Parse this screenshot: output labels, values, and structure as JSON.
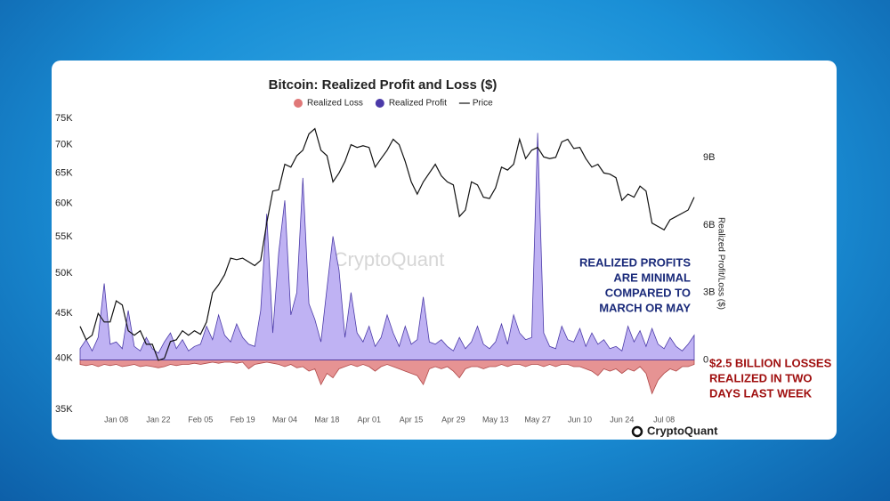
{
  "chart_data": {
    "type": "combo",
    "title": "Bitcoin: Realized Profit and Loss ($)",
    "watermark": "CryptoQuant",
    "logo": "CryptoQuant",
    "y2label": "Realized Profit/Loss ($)",
    "categories": [
      null,
      null,
      null,
      null,
      null,
      null,
      "Jan 08",
      null,
      null,
      null,
      null,
      null,
      null,
      "Jan 22",
      null,
      null,
      null,
      null,
      null,
      null,
      "Feb 05",
      null,
      null,
      null,
      null,
      null,
      null,
      "Feb 19",
      null,
      null,
      null,
      null,
      null,
      null,
      "Mar 04",
      null,
      null,
      null,
      null,
      null,
      null,
      "Mar 18",
      null,
      null,
      null,
      null,
      null,
      null,
      "Apr 01",
      null,
      null,
      null,
      null,
      null,
      null,
      "Apr 15",
      null,
      null,
      null,
      null,
      null,
      null,
      "Apr 29",
      null,
      null,
      null,
      null,
      null,
      null,
      "May 13",
      null,
      null,
      null,
      null,
      null,
      null,
      "May 27",
      null,
      null,
      null,
      null,
      null,
      null,
      "Jun 10",
      null,
      null,
      null,
      null,
      null,
      null,
      "Jun 24",
      null,
      null,
      null,
      null,
      null,
      null,
      "Jul 08",
      null,
      null,
      null,
      null,
      null
    ],
    "ylim": [
      35000,
      75000
    ],
    "log_y": true,
    "yticks": [
      {
        "value": 35000,
        "label": "35K"
      },
      {
        "value": 40000,
        "label": "40K"
      },
      {
        "value": 45000,
        "label": "45K"
      },
      {
        "value": 50000,
        "label": "50K"
      },
      {
        "value": 55000,
        "label": "55K"
      },
      {
        "value": 60000,
        "label": "60K"
      },
      {
        "value": 65000,
        "label": "65K"
      },
      {
        "value": 70000,
        "label": "70K"
      },
      {
        "value": 75000,
        "label": "75K"
      }
    ],
    "y2lim": [
      -2200000000.0,
      10750000000.0
    ],
    "y2ticks": [
      0,
      {
        "value": 3000000000.0,
        "label": "3B"
      },
      {
        "value": 6000000000.0,
        "label": "6B"
      },
      {
        "value": 9000000000.0,
        "label": "9B"
      }
    ],
    "series": [
      {
        "name": "Realized Loss",
        "type": "area",
        "axis": "y2",
        "color": "#e07878",
        "values": [
          -200000000.0,
          -250000000.0,
          -200000000.0,
          -300000000.0,
          -200000000.0,
          -250000000.0,
          -200000000.0,
          -300000000.0,
          -250000000.0,
          -200000000.0,
          -300000000.0,
          -250000000.0,
          -300000000.0,
          -350000000.0,
          -300000000.0,
          -200000000.0,
          -250000000.0,
          -200000000.0,
          -200000000.0,
          -150000000.0,
          -200000000.0,
          -150000000.0,
          -100000000.0,
          -150000000.0,
          -100000000.0,
          -100000000.0,
          -150000000.0,
          -100000000.0,
          -400000000.0,
          -200000000.0,
          -150000000.0,
          -100000000.0,
          -150000000.0,
          -200000000.0,
          -300000000.0,
          -200000000.0,
          -350000000.0,
          -300000000.0,
          -500000000.0,
          -400000000.0,
          -1100000000.0,
          -600000000.0,
          -800000000.0,
          -400000000.0,
          -300000000.0,
          -200000000.0,
          -300000000.0,
          -200000000.0,
          -300000000.0,
          -500000000.0,
          -300000000.0,
          -200000000.0,
          -300000000.0,
          -400000000.0,
          -500000000.0,
          -600000000.0,
          -700000000.0,
          -1100000000.0,
          -400000000.0,
          -300000000.0,
          -400000000.0,
          -300000000.0,
          -500000000.0,
          -800000000.0,
          -400000000.0,
          -300000000.0,
          -300000000.0,
          -400000000.0,
          -300000000.0,
          -300000000.0,
          -200000000.0,
          -300000000.0,
          -200000000.0,
          -200000000.0,
          -300000000.0,
          -200000000.0,
          -200000000.0,
          -300000000.0,
          -200000000.0,
          -300000000.0,
          -200000000.0,
          -200000000.0,
          -300000000.0,
          -300000000.0,
          -400000000.0,
          -500000000.0,
          -700000000.0,
          -400000000.0,
          -500000000.0,
          -400000000.0,
          -600000000.0,
          -400000000.0,
          -500000000.0,
          -300000000.0,
          -600000000.0,
          -1500000000.0,
          -900000000.0,
          -600000000.0,
          -400000000.0,
          -500000000.0,
          -300000000.0,
          -300000000.0,
          -200000000.0
        ]
      },
      {
        "name": "Realized Profit",
        "type": "area",
        "axis": "y2",
        "color": "#4b3aa8",
        "values": [
          500000000.0,
          900000000.0,
          400000000.0,
          1000000000.0,
          3400000000.0,
          700000000.0,
          800000000.0,
          500000000.0,
          2200000000.0,
          600000000.0,
          400000000.0,
          1000000000.0,
          500000000.0,
          300000000.0,
          800000000.0,
          1200000000.0,
          500000000.0,
          900000000.0,
          400000000.0,
          600000000.0,
          700000000.0,
          1500000000.0,
          900000000.0,
          2000000000.0,
          1100000000.0,
          800000000.0,
          1600000000.0,
          1000000000.0,
          700000000.0,
          600000000.0,
          2200000000.0,
          6500000000.0,
          1200000000.0,
          4800000000.0,
          7100000000.0,
          2000000000.0,
          3000000000.0,
          8100000000.0,
          2500000000.0,
          1800000000.0,
          800000000.0,
          3200000000.0,
          5500000000.0,
          4000000000.0,
          1000000000.0,
          3000000000.0,
          1200000000.0,
          800000000.0,
          1500000000.0,
          600000000.0,
          1000000000.0,
          2000000000.0,
          1200000000.0,
          600000000.0,
          1500000000.0,
          700000000.0,
          900000000.0,
          2800000000.0,
          800000000.0,
          700000000.0,
          900000000.0,
          600000000.0,
          400000000.0,
          1000000000.0,
          500000000.0,
          800000000.0,
          1500000000.0,
          700000000.0,
          500000000.0,
          800000000.0,
          1600000000.0,
          700000000.0,
          2000000000.0,
          1200000000.0,
          900000000.0,
          1000000000.0,
          10100000000.0,
          1200000000.0,
          600000000.0,
          500000000.0,
          1500000000.0,
          900000000.0,
          800000000.0,
          1400000000.0,
          600000000.0,
          1200000000.0,
          700000000.0,
          900000000.0,
          500000000.0,
          600000000.0,
          400000000.0,
          1500000000.0,
          800000000.0,
          1300000000.0,
          600000000.0,
          1400000000.0,
          700000000.0,
          500000000.0,
          1000000000.0,
          600000000.0,
          400000000.0,
          700000000.0,
          1100000000.0
        ]
      },
      {
        "name": "Price",
        "type": "line",
        "axis": "y",
        "color": "#111111",
        "values": [
          43500,
          42000,
          42500,
          45000,
          44000,
          44000,
          46500,
          46000,
          43000,
          42500,
          43000,
          41500,
          41500,
          39800,
          40000,
          41800,
          42000,
          43000,
          42500,
          43000,
          42600,
          44000,
          47500,
          48500,
          49800,
          52000,
          51800,
          52000,
          51500,
          51000,
          51700,
          57000,
          62000,
          62200,
          66500,
          66000,
          68000,
          69000,
          72000,
          73000,
          69000,
          68000,
          63500,
          65000,
          67000,
          70000,
          69500,
          69800,
          69500,
          66000,
          67500,
          69000,
          71000,
          70000,
          67000,
          63500,
          61500,
          63500,
          65000,
          66500,
          64500,
          63500,
          63000,
          58000,
          59000,
          63500,
          63000,
          61000,
          60800,
          62500,
          66000,
          65500,
          66500,
          71000,
          67500,
          69000,
          69500,
          67800,
          67500,
          67700,
          70500,
          71000,
          69300,
          69500,
          67500,
          66000,
          66500,
          65000,
          64800,
          64200,
          60500,
          61500,
          61000,
          62800,
          62000,
          57000,
          56500,
          56000,
          57500,
          58000,
          58500,
          59000,
          61000
        ]
      }
    ],
    "annotations": [
      {
        "lines": [
          "REALIZED PROFITS",
          "ARE MINIMAL",
          "COMPARED TO",
          "MARCH OR MAY"
        ],
        "color": "#1a2a7a"
      },
      {
        "lines": [
          "$2.5 BILLION LOSSES",
          "REALIZED IN TWO",
          "DAYS LAST WEEK"
        ],
        "color": "#a01010"
      }
    ]
  }
}
